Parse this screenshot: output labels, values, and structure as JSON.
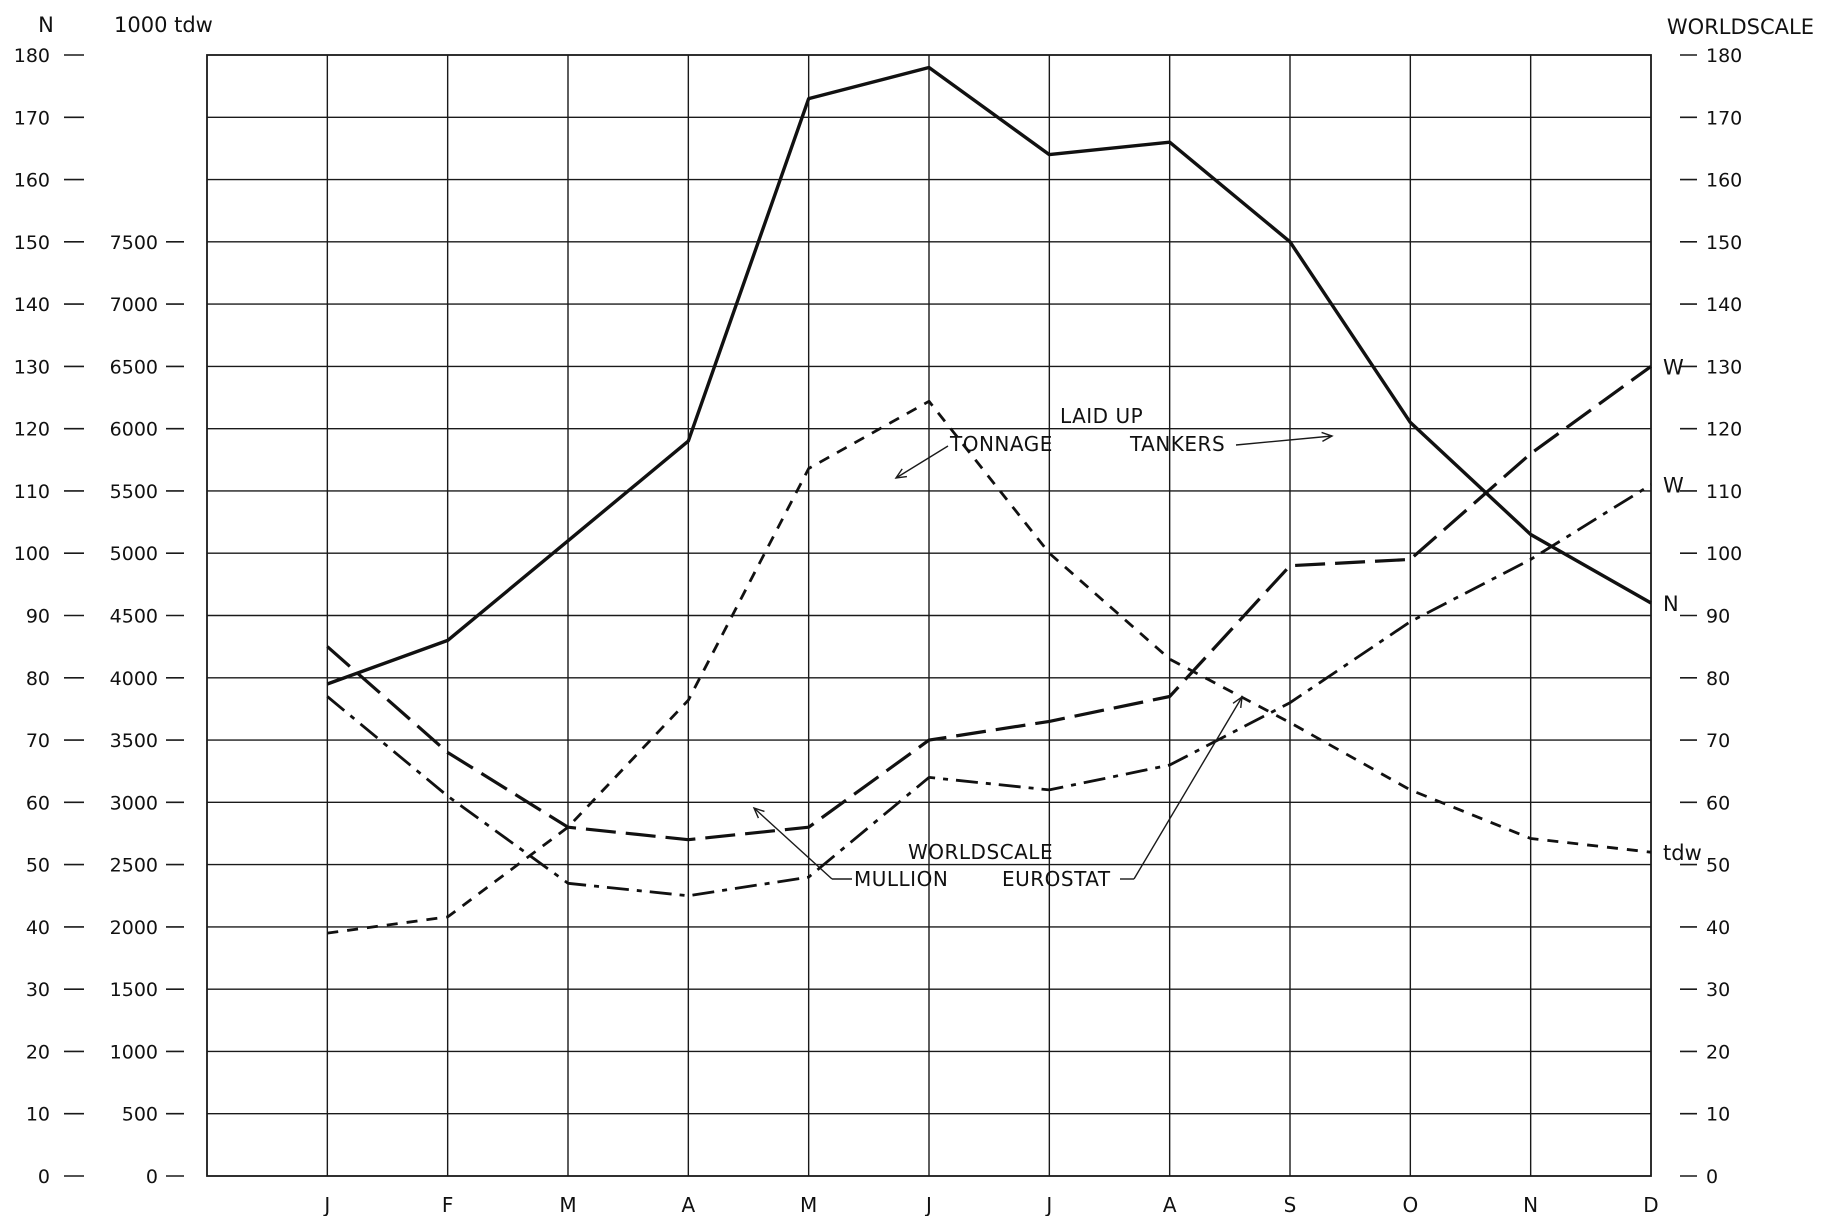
{
  "chart_data": {
    "type": "line",
    "categories": [
      "J",
      "F",
      "M",
      "A",
      "M",
      "J",
      "J",
      "A",
      "S",
      "O",
      "N",
      "D"
    ],
    "axes": {
      "left_n": {
        "label": "N",
        "ticks": [
          "0",
          "10",
          "20",
          "30",
          "40",
          "50",
          "60",
          "70",
          "80",
          "90",
          "100",
          "110",
          "120",
          "130",
          "140",
          "150",
          "160",
          "170",
          "180"
        ],
        "range": [
          0,
          180
        ]
      },
      "left_tdw": {
        "label": "1000 tdw",
        "ticks": [
          "0",
          "500",
          "1000",
          "1500",
          "2000",
          "2500",
          "3000",
          "3500",
          "4000",
          "4500",
          "5000",
          "5500",
          "6000",
          "6500",
          "7000",
          "7500"
        ],
        "range": [
          0,
          9000
        ]
      },
      "right_worldscale": {
        "label": "WORLDSCALE",
        "ticks": [
          "0",
          "10",
          "20",
          "30",
          "40",
          "50",
          "60",
          "70",
          "80",
          "90",
          "100",
          "110",
          "120",
          "130",
          "140",
          "150",
          "160",
          "170",
          "180"
        ],
        "range": [
          0,
          180
        ]
      }
    },
    "series": [
      {
        "key": "laid_up_n",
        "end_label": "N",
        "axis": "left_n",
        "style": "solid",
        "values": [
          79,
          86,
          102,
          118,
          173,
          178,
          164,
          166,
          150,
          121,
          103,
          92
        ]
      },
      {
        "key": "laid_up_tdw",
        "end_label": "tdw",
        "axis": "left_tdw",
        "style": "short-dash",
        "values": [
          1950,
          2080,
          2800,
          3820,
          5680,
          6220,
          5000,
          4150,
          3640,
          3100,
          2710,
          2600
        ]
      },
      {
        "key": "worldscale_mullion",
        "end_label": "W",
        "axis": "right_worldscale",
        "style": "long-dash",
        "values": [
          85,
          68,
          56,
          54,
          56,
          70,
          73,
          77,
          98,
          99,
          116,
          130
        ]
      },
      {
        "key": "worldscale_eurostat",
        "end_label": "W",
        "axis": "right_worldscale",
        "style": "dash-dot",
        "values": [
          77,
          61,
          47,
          45,
          48,
          64,
          62,
          66,
          76,
          89,
          99,
          111
        ]
      }
    ],
    "annotations": {
      "laid_up": "LAID UP",
      "tonnage": "TONNAGE",
      "tankers": "TANKERS",
      "worldscale": "WORLDSCALE",
      "mullion": "MULLION",
      "eurostat": "EUROSTAT"
    },
    "grid": true,
    "legend": "none"
  }
}
